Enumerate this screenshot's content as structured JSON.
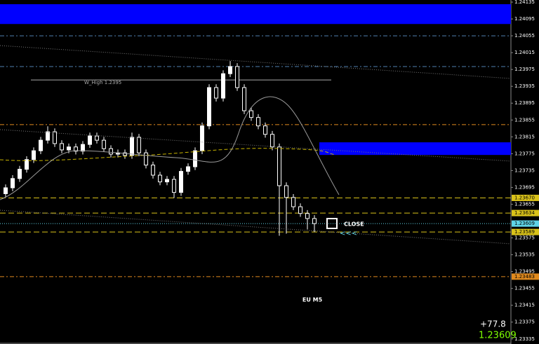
{
  "chart_data": {
    "type": "candlestick",
    "title": "EU M5",
    "ylim": [
      1.23323,
      1.2414
    ],
    "yticks": [
      1.24135,
      1.24095,
      1.24055,
      1.24015,
      1.23975,
      1.23935,
      1.23895,
      1.23855,
      1.23815,
      1.23775,
      1.23735,
      1.23695,
      1.23655,
      1.23575,
      1.23535,
      1.23495,
      1.23455,
      1.23415,
      1.23375,
      1.23335
    ],
    "series": [
      {
        "up_color": "#ffffff",
        "down_color": "#000000",
        "open": [
          1.2368,
          1.23694,
          1.23716,
          1.23738,
          1.23761,
          1.23782,
          1.23807,
          1.23827,
          1.23799,
          1.23784,
          1.23791,
          1.23781,
          1.23797,
          1.23817,
          1.23807,
          1.23787,
          1.23774,
          1.23777,
          1.23771,
          1.23814,
          1.23777,
          1.23748,
          1.23724,
          1.23708,
          1.23714,
          1.23683,
          1.23733,
          1.23744,
          1.23782,
          1.23841,
          1.23932,
          1.23907,
          1.23965,
          1.23982,
          1.23932,
          1.23877,
          1.23861,
          1.23841,
          1.23821,
          1.23791,
          1.23699,
          1.23671,
          1.23649,
          1.23633,
          1.23621
        ],
        "high": [
          1.23702,
          1.23724,
          1.23746,
          1.23769,
          1.2379,
          1.23815,
          1.2384,
          1.23835,
          1.23807,
          1.23799,
          1.23799,
          1.23805,
          1.23825,
          1.23825,
          1.23815,
          1.23795,
          1.23785,
          1.23785,
          1.23825,
          1.23822,
          1.23785,
          1.23756,
          1.23732,
          1.23722,
          1.23722,
          1.23741,
          1.23752,
          1.2379,
          1.23849,
          1.2394,
          1.2394,
          1.23973,
          1.23995,
          1.2399,
          1.2394,
          1.23885,
          1.23869,
          1.23849,
          1.23829,
          1.23799,
          1.23707,
          1.23679,
          1.23657,
          1.23641,
          1.23629
        ],
        "low": [
          1.23672,
          1.23686,
          1.23708,
          1.2373,
          1.23753,
          1.23774,
          1.23799,
          1.23791,
          1.23776,
          1.23776,
          1.23773,
          1.23773,
          1.23789,
          1.23799,
          1.23779,
          1.23766,
          1.23766,
          1.23763,
          1.23763,
          1.23769,
          1.2374,
          1.23716,
          1.237,
          1.237,
          1.2367,
          1.23675,
          1.23725,
          1.23736,
          1.23774,
          1.23833,
          1.23899,
          1.23899,
          1.23957,
          1.23924,
          1.23869,
          1.23853,
          1.23833,
          1.23813,
          1.23783,
          1.2358,
          1.23585,
          1.23641,
          1.23625,
          1.23595,
          1.23589
        ],
        "close": [
          1.23694,
          1.23716,
          1.23738,
          1.23761,
          1.23782,
          1.23807,
          1.23827,
          1.23799,
          1.23784,
          1.23791,
          1.23781,
          1.23797,
          1.23817,
          1.23807,
          1.23787,
          1.23774,
          1.23777,
          1.23771,
          1.23814,
          1.23777,
          1.23748,
          1.23724,
          1.23708,
          1.23714,
          1.23683,
          1.23733,
          1.23744,
          1.23782,
          1.23841,
          1.23932,
          1.23907,
          1.23965,
          1.23982,
          1.23932,
          1.23877,
          1.23861,
          1.23841,
          1.23821,
          1.23791,
          1.23699,
          1.23671,
          1.23649,
          1.23633,
          1.23621,
          1.23609
        ]
      }
    ],
    "zones": [
      {
        "from": 1.2413,
        "to": 1.24083,
        "color": "#0000ff"
      },
      {
        "from": 1.23802,
        "to": 1.23772,
        "color": "#0000ff"
      }
    ],
    "levels": [
      {
        "value": 1.24055,
        "color": "#4f7fb0",
        "dash": "6 3 2 3"
      },
      {
        "value": 1.23982,
        "color": "#4f7fb0",
        "dash": "6 3 2 3"
      },
      {
        "value": 1.23844,
        "color": "#e08a1e",
        "dash": "6 3 2 3"
      },
      {
        "value": 1.2367,
        "label": "1.23670",
        "color": "#d9c21a",
        "dash": "8 4"
      },
      {
        "value": 1.23634,
        "label": "1.23634",
        "color": "#d9c21a",
        "dash": "8 4"
      },
      {
        "value": 1.23609,
        "label": "1.23609",
        "color": "#5fd3e6",
        "dash": "1 2"
      },
      {
        "value": 1.23589,
        "label": "1.23589",
        "color": "#d9c21a",
        "dash": "8 4"
      },
      {
        "value": 1.23483,
        "label": "1.23483",
        "color": "#e08a1e",
        "dash": "6 3 2 3"
      }
    ],
    "w_high": {
      "value": 1.2395,
      "label": "W_High  1.2395"
    },
    "close_label": "CLOSE",
    "arrows": "<<<",
    "profit": "+77.8",
    "bid": "1.23609"
  }
}
